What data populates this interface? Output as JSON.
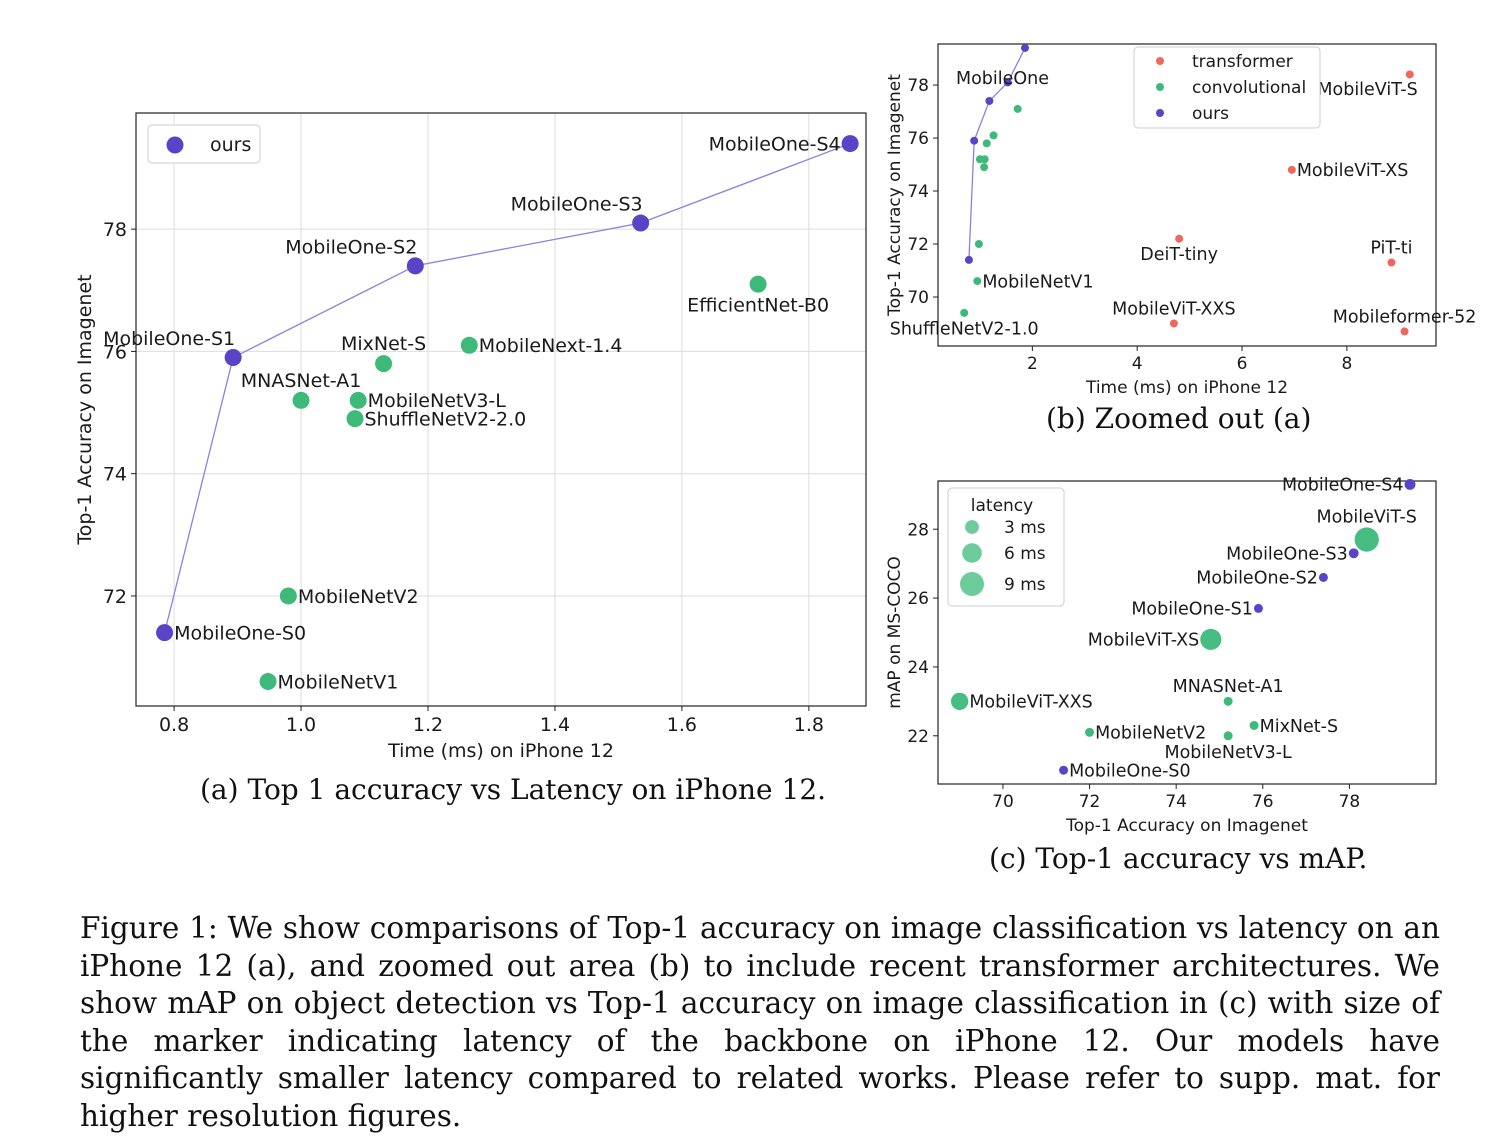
{
  "colors": {
    "ours": "#5b43c8",
    "convolutional": "#3dba7a",
    "transformer": "#f0675d",
    "line": "#8f7fe0",
    "grid": "#dddddd"
  },
  "captions": {
    "a": "(a) Top 1 accuracy vs Latency on iPhone 12.",
    "b": "(b) Zoomed out (a)",
    "c": "(c) Top-1 accuracy vs mAP.",
    "figure": "Figure 1: We show comparisons of Top-1 accuracy on image classification vs latency on an iPhone 12 (a), and zoomed out area (b) to include recent transformer architectures. We show mAP on object detection vs Top-1 accuracy on image classification in (c) with size of the marker indicating latency of the backbone on iPhone 12. Our models have significantly smaller latency compared to related works. Please refer to supp. mat. for higher resolution figures."
  },
  "chart_data": [
    {
      "id": "a",
      "type": "scatter",
      "xlabel": "Time (ms) on iPhone 12",
      "ylabel": "Top-1 Accuracy on Imagenet",
      "xlim": [
        0.74,
        1.89
      ],
      "ylim": [
        70.2,
        79.9
      ],
      "xticks": [
        0.8,
        1.0,
        1.2,
        1.4,
        1.6,
        1.8
      ],
      "xtick_labels": [
        "0.8",
        "1.0",
        "1.2",
        "1.4",
        "1.6",
        "1.8"
      ],
      "yticks": [
        72,
        74,
        76,
        78
      ],
      "ytick_labels": [
        "72",
        "74",
        "76",
        "78"
      ],
      "grid": true,
      "legend": {
        "position": "top-left",
        "entries": [
          {
            "name": "ours",
            "color": "ours"
          }
        ]
      },
      "line": [
        "MobileOne-S0",
        "MobileOne-S1",
        "MobileOne-S2",
        "MobileOne-S3",
        "MobileOne-S4"
      ],
      "points": [
        {
          "name": "MobileOne-S0",
          "x": 0.785,
          "y": 71.4,
          "group": "ours",
          "label": "MobileOne-S0",
          "lpos": "right"
        },
        {
          "name": "MobileOne-S1",
          "x": 0.893,
          "y": 75.9,
          "group": "ours",
          "label": "MobileOne-S1",
          "lpos": "above-left"
        },
        {
          "name": "MobileOne-S2",
          "x": 1.18,
          "y": 77.4,
          "group": "ours",
          "label": "MobileOne-S2",
          "lpos": "above-left"
        },
        {
          "name": "MobileOne-S3",
          "x": 1.535,
          "y": 78.1,
          "group": "ours",
          "label": "MobileOne-S3",
          "lpos": "above-left"
        },
        {
          "name": "MobileOne-S4",
          "x": 1.865,
          "y": 79.4,
          "group": "ours",
          "label": "MobileOne-S4",
          "lpos": "left"
        },
        {
          "name": "EfficientNet-B0",
          "x": 1.72,
          "y": 77.1,
          "group": "convolutional",
          "label": "EfficientNet-B0",
          "lpos": "below"
        },
        {
          "name": "MobileNext-1.4",
          "x": 1.265,
          "y": 76.1,
          "group": "convolutional",
          "label": "MobileNext-1.4",
          "lpos": "right"
        },
        {
          "name": "MixNet-S",
          "x": 1.13,
          "y": 75.8,
          "group": "convolutional",
          "label": "MixNet-S",
          "lpos": "above"
        },
        {
          "name": "MNASNet-A1",
          "x": 1.0,
          "y": 75.2,
          "group": "convolutional",
          "label": "MNASNet-A1",
          "lpos": "above"
        },
        {
          "name": "MobileNetV3-L",
          "x": 1.09,
          "y": 75.2,
          "group": "convolutional",
          "label": "MobileNetV3-L",
          "lpos": "right"
        },
        {
          "name": "ShuffleNetV2-2.0",
          "x": 1.085,
          "y": 74.9,
          "group": "convolutional",
          "label": "ShuffleNetV2-2.0",
          "lpos": "right"
        },
        {
          "name": "MobileNetV2",
          "x": 0.98,
          "y": 72.0,
          "group": "convolutional",
          "label": "MobileNetV2",
          "lpos": "right"
        },
        {
          "name": "MobileNetV1",
          "x": 0.948,
          "y": 70.6,
          "group": "convolutional",
          "label": "MobileNetV1",
          "lpos": "right"
        }
      ]
    },
    {
      "id": "b",
      "type": "scatter",
      "xlabel": "Time (ms) on iPhone 12",
      "ylabel": "Top-1 Accuracy on Imagenet",
      "xlim": [
        0.2,
        9.7
      ],
      "ylim": [
        68.15,
        79.55
      ],
      "xticks": [
        2,
        4,
        6,
        8
      ],
      "xtick_labels": [
        "2",
        "4",
        "6",
        "8"
      ],
      "yticks": [
        70,
        72,
        74,
        76,
        78
      ],
      "ytick_labels": [
        "70",
        "72",
        "74",
        "76",
        "78"
      ],
      "grid": false,
      "annotation": "MobileOne",
      "legend": {
        "position": "top-center",
        "entries": [
          {
            "name": "transformer",
            "color": "transformer"
          },
          {
            "name": "convolutional",
            "color": "convolutional"
          },
          {
            "name": "ours",
            "color": "ours"
          }
        ]
      },
      "line": [
        "MobileOne-S0",
        "MobileOne-S1",
        "MobileOne-S2",
        "MobileOne-S3",
        "MobileOne-S4"
      ],
      "points": [
        {
          "name": "MobileOne-S0",
          "x": 0.79,
          "y": 71.4,
          "group": "ours",
          "label": ""
        },
        {
          "name": "MobileOne-S1",
          "x": 0.89,
          "y": 75.9,
          "group": "ours",
          "label": ""
        },
        {
          "name": "MobileOne-S2",
          "x": 1.18,
          "y": 77.4,
          "group": "ours",
          "label": ""
        },
        {
          "name": "MobileOne-S3",
          "x": 1.53,
          "y": 78.1,
          "group": "ours",
          "label": ""
        },
        {
          "name": "MobileOne-S4",
          "x": 1.86,
          "y": 79.4,
          "group": "ours",
          "label": ""
        },
        {
          "name": "EfficientNet-B0",
          "x": 1.72,
          "y": 77.1,
          "group": "convolutional",
          "label": ""
        },
        {
          "name": "MobileNext-1.4",
          "x": 1.26,
          "y": 76.1,
          "group": "convolutional",
          "label": ""
        },
        {
          "name": "MixNet-S",
          "x": 1.13,
          "y": 75.8,
          "group": "convolutional",
          "label": ""
        },
        {
          "name": "MNASNet-A1",
          "x": 1.0,
          "y": 75.2,
          "group": "convolutional",
          "label": ""
        },
        {
          "name": "MobileNetV3-L",
          "x": 1.09,
          "y": 75.2,
          "group": "convolutional",
          "label": ""
        },
        {
          "name": "ShuffleNetV2-2.0",
          "x": 1.08,
          "y": 74.9,
          "group": "convolutional",
          "label": ""
        },
        {
          "name": "MobileNetV2",
          "x": 0.98,
          "y": 72.0,
          "group": "convolutional",
          "label": ""
        },
        {
          "name": "MobileNetV1",
          "x": 0.95,
          "y": 70.6,
          "group": "convolutional",
          "label": "MobileNetV1",
          "lpos": "right"
        },
        {
          "name": "ShuffleNetV2-1.0",
          "x": 0.7,
          "y": 69.4,
          "group": "convolutional",
          "label": "ShuffleNetV2-1.0",
          "lpos": "below"
        },
        {
          "name": "MobileViT-S",
          "x": 9.2,
          "y": 78.4,
          "group": "transformer",
          "label": "MobileViT-S",
          "lpos": "below-left"
        },
        {
          "name": "MobileViT-XS",
          "x": 6.95,
          "y": 74.8,
          "group": "transformer",
          "label": "MobileViT-XS",
          "lpos": "right"
        },
        {
          "name": "DeiT-tiny",
          "x": 4.8,
          "y": 72.2,
          "group": "transformer",
          "label": "DeiT-tiny",
          "lpos": "below"
        },
        {
          "name": "PiT-ti",
          "x": 8.85,
          "y": 71.3,
          "group": "transformer",
          "label": "PiT-ti",
          "lpos": "above"
        },
        {
          "name": "MobileViT-XXS",
          "x": 4.7,
          "y": 69.0,
          "group": "transformer",
          "label": "MobileViT-XXS",
          "lpos": "above"
        },
        {
          "name": "Mobileformer-52",
          "x": 9.1,
          "y": 68.7,
          "group": "transformer",
          "label": "Mobileformer-52",
          "lpos": "above"
        }
      ]
    },
    {
      "id": "c",
      "type": "scatter",
      "xlabel": "Top-1 Accuracy on Imagenet",
      "ylabel": "mAP on MS-COCO",
      "xlim": [
        68.5,
        80.0
      ],
      "ylim": [
        20.6,
        29.4
      ],
      "xticks": [
        70,
        72,
        74,
        76,
        78
      ],
      "xtick_labels": [
        "70",
        "72",
        "74",
        "76",
        "78"
      ],
      "yticks": [
        22,
        24,
        26,
        28
      ],
      "ytick_labels": [
        "22",
        "24",
        "26",
        "28"
      ],
      "grid": false,
      "legend": {
        "title": "latency",
        "position": "top-left",
        "entries": [
          {
            "name": "3 ms",
            "latency": 3
          },
          {
            "name": "6 ms",
            "latency": 6
          },
          {
            "name": "9 ms",
            "latency": 9
          }
        ]
      },
      "points": [
        {
          "name": "MobileOne-S4",
          "x": 79.4,
          "y": 29.3,
          "latency": 1.86,
          "group": "ours",
          "label": "MobileOne-S4",
          "lpos": "left"
        },
        {
          "name": "MobileViT-S",
          "x": 78.4,
          "y": 27.7,
          "latency": 9.2,
          "group": "convolutional",
          "label": "MobileViT-S",
          "lpos": "above"
        },
        {
          "name": "MobileOne-S3",
          "x": 78.1,
          "y": 27.3,
          "latency": 1.53,
          "group": "ours",
          "label": "MobileOne-S3",
          "lpos": "left"
        },
        {
          "name": "MobileOne-S2",
          "x": 77.4,
          "y": 26.6,
          "latency": 1.18,
          "group": "ours",
          "label": "MobileOne-S2",
          "lpos": "left"
        },
        {
          "name": "MobileOne-S1",
          "x": 75.9,
          "y": 25.7,
          "latency": 0.89,
          "group": "ours",
          "label": "MobileOne-S1",
          "lpos": "left"
        },
        {
          "name": "MobileViT-XS",
          "x": 74.8,
          "y": 24.8,
          "latency": 6.95,
          "group": "convolutional",
          "label": "MobileViT-XS",
          "lpos": "left"
        },
        {
          "name": "MNASNet-A1",
          "x": 75.2,
          "y": 23.0,
          "latency": 1.0,
          "group": "convolutional",
          "label": "MNASNet-A1",
          "lpos": "above"
        },
        {
          "name": "MobileViT-XXS",
          "x": 69.0,
          "y": 23.0,
          "latency": 4.7,
          "group": "convolutional",
          "label": "MobileViT-XXS",
          "lpos": "right"
        },
        {
          "name": "MixNet-S",
          "x": 75.8,
          "y": 22.3,
          "latency": 1.13,
          "group": "convolutional",
          "label": "MixNet-S",
          "lpos": "right"
        },
        {
          "name": "MobileNetV2",
          "x": 72.0,
          "y": 22.1,
          "latency": 0.98,
          "group": "convolutional",
          "label": "MobileNetV2",
          "lpos": "right"
        },
        {
          "name": "MobileNetV3-L",
          "x": 75.2,
          "y": 22.0,
          "latency": 1.09,
          "group": "convolutional",
          "label": "MobileNetV3-L",
          "lpos": "below"
        },
        {
          "name": "MobileOne-S0",
          "x": 71.4,
          "y": 21.0,
          "latency": 0.79,
          "group": "ours",
          "label": "MobileOne-S0",
          "lpos": "right"
        }
      ]
    }
  ]
}
